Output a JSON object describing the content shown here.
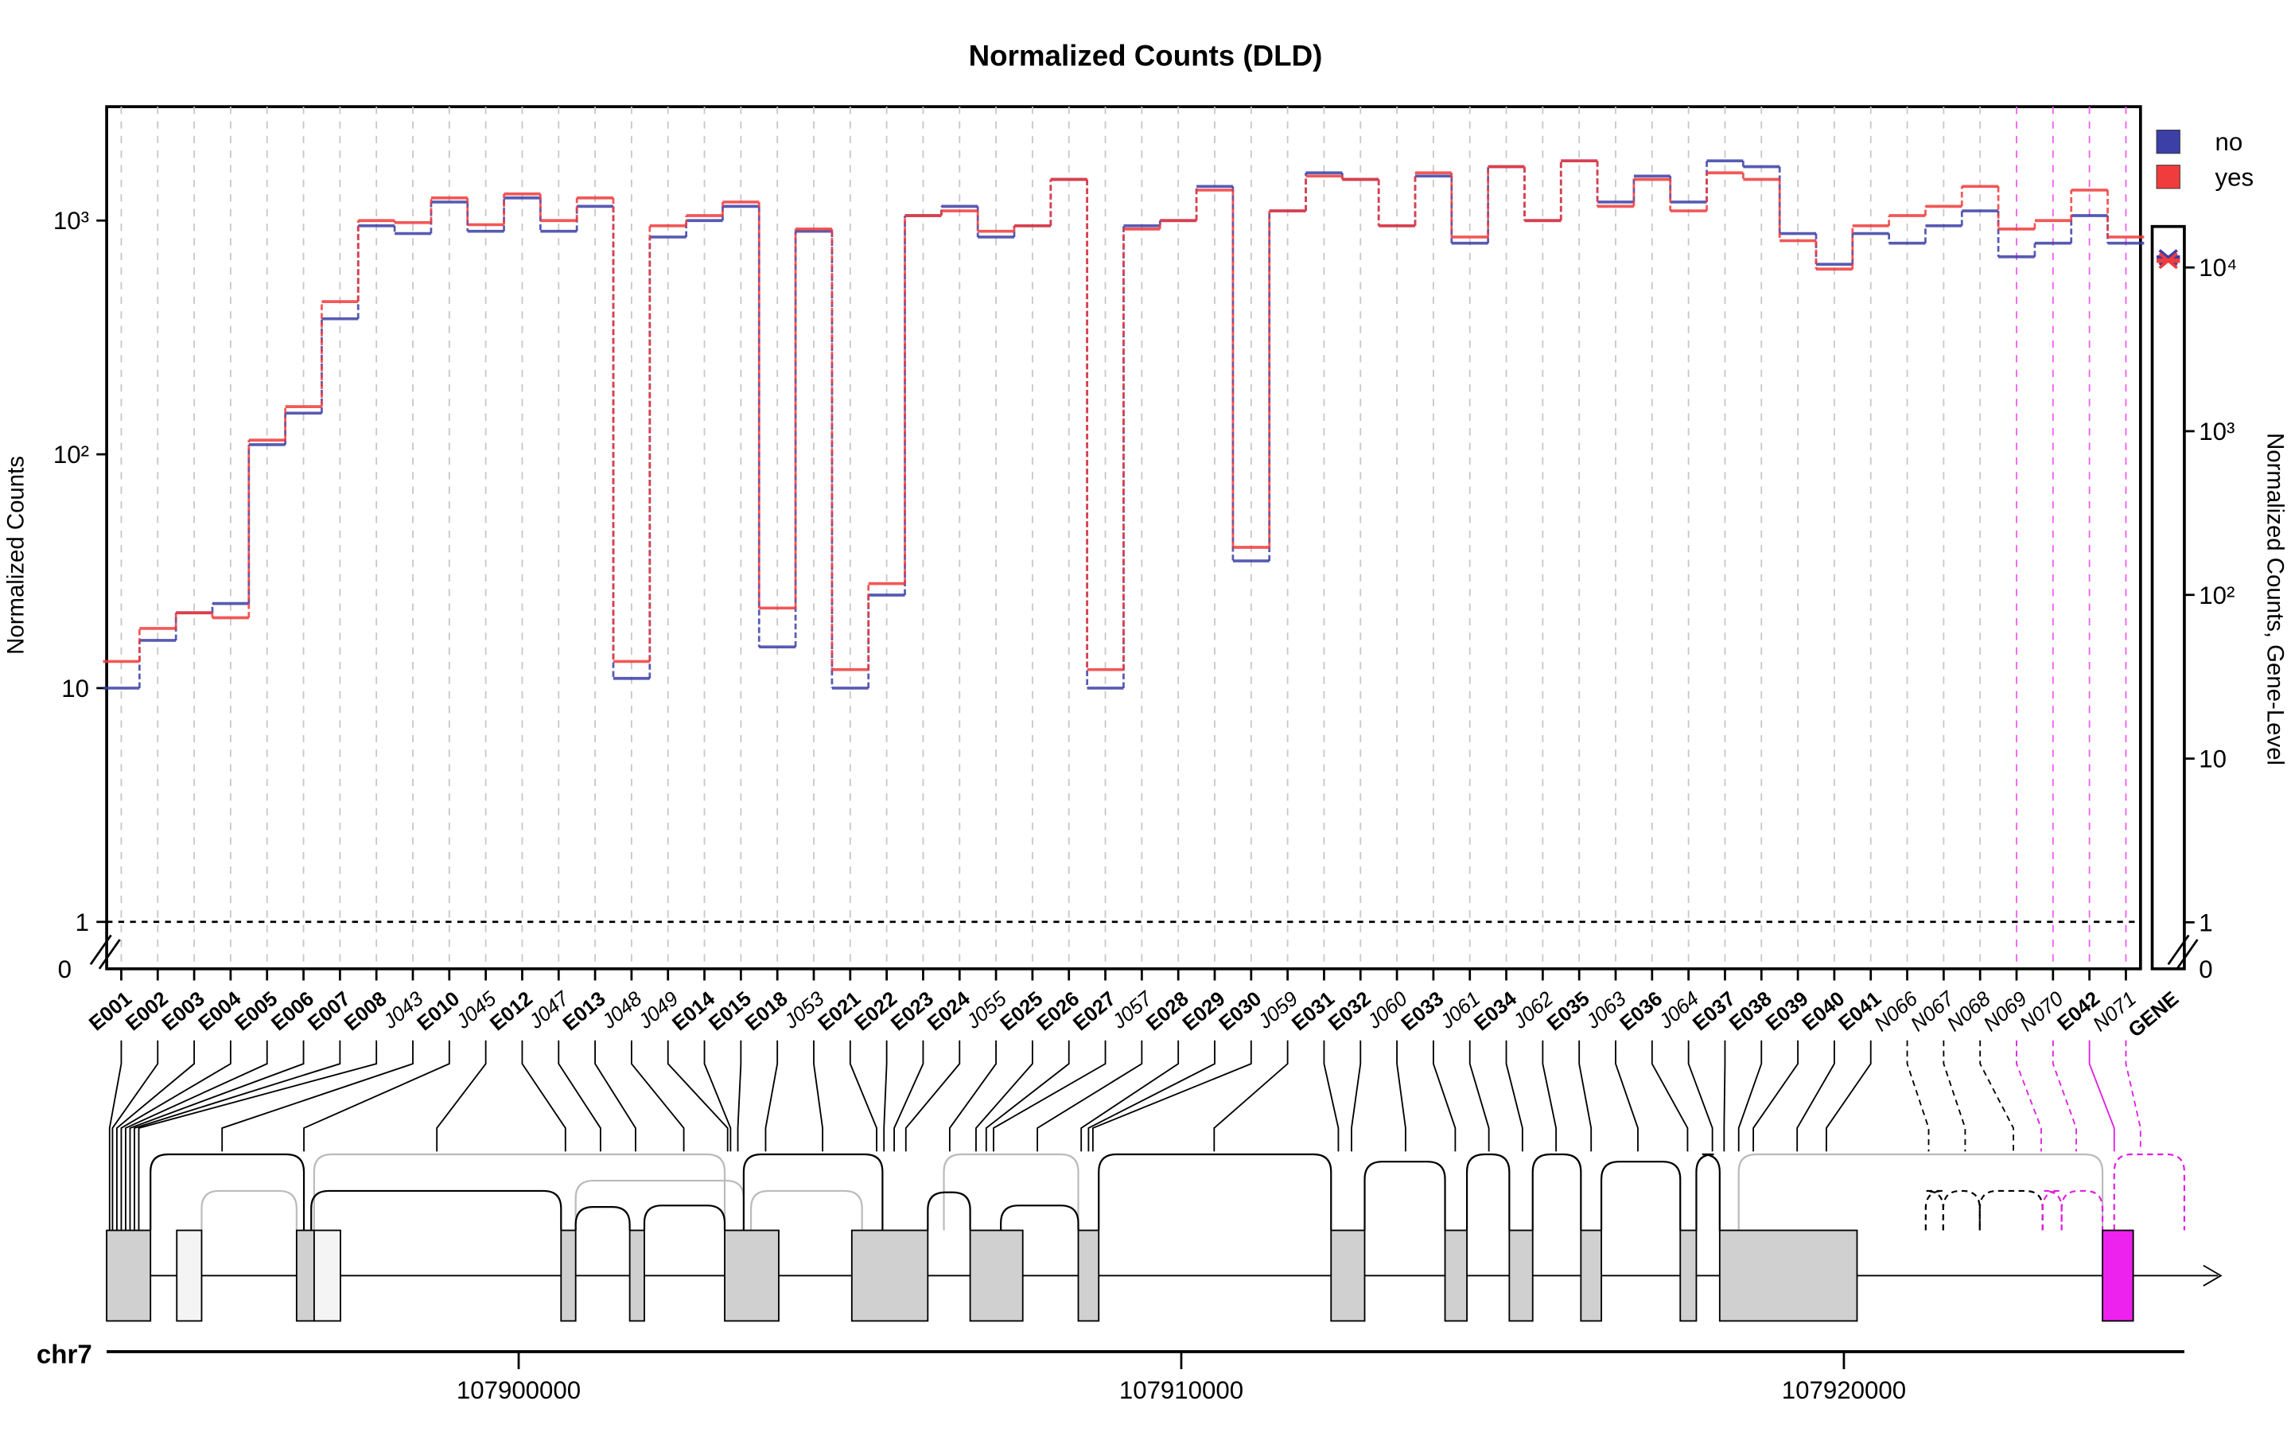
{
  "chart_data": {
    "type": "line",
    "title": "Normalized Counts (DLD)",
    "y_label": "Normalized Counts",
    "y2_label": "Normalized Counts, Gene-Level",
    "log_scale": true,
    "grid": true,
    "legend": "top-right",
    "categories": [
      "E001",
      "E002",
      "E003",
      "E004",
      "E005",
      "E006",
      "E007",
      "E008",
      "J043",
      "E010",
      "J045",
      "E012",
      "J047",
      "E013",
      "J048",
      "J049",
      "E014",
      "E015",
      "E018",
      "J053",
      "E021",
      "E022",
      "E023",
      "E024",
      "J055",
      "E025",
      "E026",
      "E027",
      "J057",
      "E028",
      "E029",
      "E030",
      "J059",
      "E031",
      "E032",
      "J060",
      "E033",
      "J061",
      "E034",
      "J062",
      "E035",
      "J063",
      "E036",
      "J064",
      "E037",
      "E038",
      "E039",
      "E040",
      "E041",
      "N066",
      "N067",
      "N068",
      "N069",
      "N070",
      "E042",
      "N071"
    ],
    "gene_label": "GENE",
    "series": [
      {
        "name": "no",
        "color": "#3b3fa6",
        "gene_value": 11500,
        "values": [
          10,
          16,
          21,
          23,
          110,
          150,
          380,
          950,
          880,
          1200,
          900,
          1250,
          900,
          1150,
          11,
          850,
          1000,
          1150,
          15,
          900,
          10,
          25,
          1050,
          1150,
          850,
          950,
          1500,
          10,
          950,
          1000,
          1400,
          35,
          1100,
          1600,
          1500,
          950,
          1550,
          800,
          1700,
          1000,
          1800,
          1200,
          1550,
          1200,
          1800,
          1700,
          880,
          650,
          880,
          800,
          950,
          1100,
          700,
          800,
          1050,
          800
        ]
      },
      {
        "name": "yes",
        "color": "#f03c3c",
        "gene_value": 11000,
        "values": [
          13,
          18,
          21,
          20,
          115,
          160,
          450,
          1000,
          980,
          1250,
          960,
          1300,
          1000,
          1250,
          13,
          950,
          1050,
          1200,
          22,
          920,
          12,
          28,
          1050,
          1100,
          900,
          950,
          1500,
          12,
          920,
          1000,
          1350,
          40,
          1100,
          1550,
          1500,
          950,
          1600,
          850,
          1700,
          1000,
          1800,
          1150,
          1500,
          1100,
          1600,
          1500,
          820,
          620,
          950,
          1050,
          1150,
          1400,
          920,
          1000,
          1350,
          850
        ]
      }
    ],
    "ylim": [
      0.63,
      3070
    ],
    "yticks": [
      1,
      10,
      {
        "value": 100,
        "label": "10²"
      },
      {
        "value": 1000,
        "label": "10³"
      }
    ],
    "zero_label": "0",
    "y2lim": [
      0.52,
      96000
    ],
    "y2ticks": [
      1,
      10,
      {
        "value": 100,
        "label": "10²"
      },
      {
        "value": 1000,
        "label": "10³"
      },
      {
        "value": 10000,
        "label": "10⁴"
      }
    ],
    "genome": {
      "chrom": "chr7",
      "xlim": [
        107893782,
        107925138
      ],
      "xticks": [
        107900000,
        107910000,
        107920000
      ]
    }
  }
}
